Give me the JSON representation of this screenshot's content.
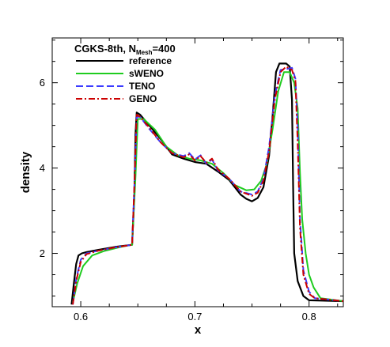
{
  "chart_data": {
    "type": "line",
    "title": {
      "prefix": "CGKS-8th, N",
      "sub": "Mesh",
      "suffix": "=400"
    },
    "xlabel": "x",
    "ylabel": "density",
    "xlim": [
      0.575,
      0.83
    ],
    "ylim": [
      0.75,
      7.05
    ],
    "xticks": [
      0.6,
      0.7,
      0.8
    ],
    "yticks": [
      2,
      4,
      6
    ],
    "grid": false,
    "legend_position": "top-left",
    "series": [
      {
        "name": "reference",
        "color": "#000000",
        "dash": "solid",
        "x": [
          0.592,
          0.594,
          0.596,
          0.598,
          0.601,
          0.605,
          0.615,
          0.63,
          0.645,
          0.647,
          0.648,
          0.649,
          0.652,
          0.66,
          0.67,
          0.68,
          0.69,
          0.7,
          0.71,
          0.72,
          0.73,
          0.74,
          0.745,
          0.75,
          0.755,
          0.76,
          0.765,
          0.768,
          0.771,
          0.774,
          0.78,
          0.783,
          0.785,
          0.786,
          0.787,
          0.79,
          0.795,
          0.8,
          0.83
        ],
        "y": [
          0.8,
          1.3,
          1.75,
          1.95,
          2.0,
          2.03,
          2.08,
          2.15,
          2.2,
          3.4,
          4.8,
          5.3,
          5.25,
          5.0,
          4.68,
          4.32,
          4.22,
          4.14,
          4.1,
          3.92,
          3.72,
          3.38,
          3.28,
          3.22,
          3.3,
          3.55,
          4.3,
          5.2,
          6.25,
          6.45,
          6.45,
          6.38,
          5.6,
          3.6,
          2.0,
          1.35,
          1.0,
          0.9,
          0.88
        ]
      },
      {
        "name": "sWENO",
        "color": "#1fcc1f",
        "dash": "solid",
        "x": [
          0.593,
          0.597,
          0.602,
          0.61,
          0.62,
          0.635,
          0.645,
          0.648,
          0.65,
          0.655,
          0.665,
          0.675,
          0.685,
          0.695,
          0.705,
          0.715,
          0.725,
          0.735,
          0.745,
          0.752,
          0.758,
          0.763,
          0.768,
          0.773,
          0.778,
          0.783,
          0.787,
          0.79,
          0.792,
          0.794,
          0.797,
          0.8,
          0.804,
          0.81,
          0.83
        ],
        "y": [
          0.85,
          1.3,
          1.7,
          1.95,
          2.05,
          2.15,
          2.2,
          3.8,
          5.15,
          5.15,
          4.9,
          4.5,
          4.3,
          4.22,
          4.18,
          4.1,
          3.88,
          3.6,
          3.48,
          3.5,
          3.7,
          4.1,
          4.9,
          5.8,
          6.25,
          6.25,
          6.0,
          5.4,
          3.9,
          2.8,
          2.0,
          1.5,
          1.2,
          0.95,
          0.88
        ]
      },
      {
        "name": "TENO",
        "color": "#3b3bff",
        "dash": "dashed",
        "x": [
          0.593,
          0.596,
          0.6,
          0.605,
          0.615,
          0.63,
          0.645,
          0.647,
          0.649,
          0.652,
          0.66,
          0.67,
          0.68,
          0.69,
          0.695,
          0.7,
          0.705,
          0.71,
          0.715,
          0.72,
          0.73,
          0.74,
          0.75,
          0.755,
          0.76,
          0.765,
          0.77,
          0.775,
          0.78,
          0.785,
          0.788,
          0.79,
          0.792,
          0.795,
          0.8,
          0.805,
          0.83
        ],
        "y": [
          0.8,
          1.4,
          1.85,
          2.0,
          2.06,
          2.14,
          2.2,
          3.6,
          5.2,
          5.2,
          4.92,
          4.6,
          4.35,
          4.28,
          4.35,
          4.2,
          4.3,
          4.1,
          4.2,
          3.95,
          3.75,
          3.45,
          3.38,
          3.45,
          3.75,
          4.5,
          5.7,
          6.3,
          6.32,
          6.35,
          6.1,
          5.0,
          2.8,
          1.6,
          1.1,
          0.95,
          0.88
        ]
      },
      {
        "name": "GENO",
        "color": "#cc0000",
        "dash": "dashdot",
        "x": [
          0.593,
          0.596,
          0.6,
          0.605,
          0.615,
          0.63,
          0.645,
          0.647,
          0.649,
          0.652,
          0.66,
          0.67,
          0.68,
          0.69,
          0.695,
          0.7,
          0.705,
          0.71,
          0.715,
          0.72,
          0.73,
          0.74,
          0.75,
          0.755,
          0.76,
          0.765,
          0.77,
          0.775,
          0.78,
          0.785,
          0.788,
          0.79,
          0.792,
          0.795,
          0.8,
          0.805,
          0.83
        ],
        "y": [
          0.8,
          1.35,
          1.8,
          1.98,
          2.06,
          2.14,
          2.2,
          3.6,
          5.25,
          5.2,
          4.95,
          4.6,
          4.35,
          4.25,
          4.32,
          4.18,
          4.28,
          4.12,
          4.22,
          3.97,
          3.75,
          3.45,
          3.35,
          3.42,
          3.7,
          4.4,
          5.6,
          6.25,
          6.38,
          6.3,
          6.05,
          4.6,
          2.6,
          1.5,
          1.05,
          0.95,
          0.88
        ]
      }
    ]
  }
}
